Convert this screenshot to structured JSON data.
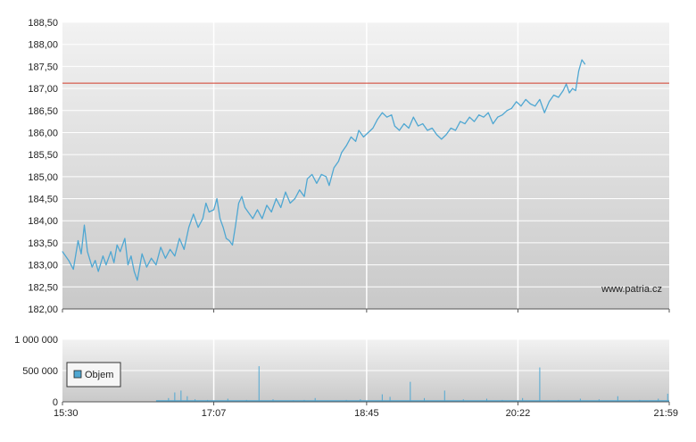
{
  "chart_data": [
    {
      "type": "line",
      "watermark": "www.patria.cz",
      "y_ticks": [
        "182,00",
        "182,50",
        "183,00",
        "183,50",
        "184,00",
        "184,50",
        "185,00",
        "185,50",
        "186,00",
        "186,50",
        "187,00",
        "187,50",
        "188,00",
        "188,50"
      ],
      "ylim": [
        182.0,
        188.5
      ],
      "reference_line": 187.12,
      "x_ticks": [
        "15:30",
        "17:07",
        "18:45",
        "20:22",
        "21:59"
      ],
      "series": [
        {
          "color": "#4fa7d2",
          "points": [
            [
              "15:30",
              183.3
            ],
            [
              "15:34",
              183.1
            ],
            [
              "15:37",
              182.9
            ],
            [
              "15:40",
              183.55
            ],
            [
              "15:42",
              183.25
            ],
            [
              "15:44",
              183.9
            ],
            [
              "15:46",
              183.3
            ],
            [
              "15:49",
              182.95
            ],
            [
              "15:51",
              183.1
            ],
            [
              "15:53",
              182.85
            ],
            [
              "15:56",
              183.2
            ],
            [
              "15:58",
              183.0
            ],
            [
              "16:01",
              183.3
            ],
            [
              "16:03",
              183.05
            ],
            [
              "16:05",
              183.45
            ],
            [
              "16:07",
              183.3
            ],
            [
              "16:10",
              183.6
            ],
            [
              "16:12",
              183.0
            ],
            [
              "16:14",
              183.2
            ],
            [
              "16:16",
              182.85
            ],
            [
              "16:18",
              182.65
            ],
            [
              "16:21",
              183.25
            ],
            [
              "16:24",
              182.95
            ],
            [
              "16:27",
              183.15
            ],
            [
              "16:30",
              183.0
            ],
            [
              "16:33",
              183.4
            ],
            [
              "16:36",
              183.15
            ],
            [
              "16:39",
              183.35
            ],
            [
              "16:42",
              183.2
            ],
            [
              "16:45",
              183.6
            ],
            [
              "16:48",
              183.35
            ],
            [
              "16:51",
              183.85
            ],
            [
              "16:54",
              184.15
            ],
            [
              "16:57",
              183.85
            ],
            [
              "17:00",
              184.05
            ],
            [
              "17:02",
              184.4
            ],
            [
              "17:04",
              184.2
            ],
            [
              "17:07",
              184.25
            ],
            [
              "17:09",
              184.5
            ],
            [
              "17:11",
              184.05
            ],
            [
              "17:13",
              183.85
            ],
            [
              "17:15",
              183.6
            ],
            [
              "17:17",
              183.55
            ],
            [
              "17:19",
              183.45
            ],
            [
              "17:21",
              183.9
            ],
            [
              "17:23",
              184.4
            ],
            [
              "17:25",
              184.55
            ],
            [
              "17:27",
              184.3
            ],
            [
              "17:29",
              184.2
            ],
            [
              "17:32",
              184.05
            ],
            [
              "17:35",
              184.25
            ],
            [
              "17:38",
              184.05
            ],
            [
              "17:41",
              184.35
            ],
            [
              "17:44",
              184.2
            ],
            [
              "17:47",
              184.5
            ],
            [
              "17:50",
              184.3
            ],
            [
              "17:53",
              184.65
            ],
            [
              "17:56",
              184.4
            ],
            [
              "17:59",
              184.5
            ],
            [
              "18:02",
              184.7
            ],
            [
              "18:05",
              184.55
            ],
            [
              "18:07",
              184.95
            ],
            [
              "18:10",
              185.05
            ],
            [
              "18:13",
              184.85
            ],
            [
              "18:16",
              185.05
            ],
            [
              "18:19",
              185.0
            ],
            [
              "18:21",
              184.8
            ],
            [
              "18:24",
              185.2
            ],
            [
              "18:27",
              185.35
            ],
            [
              "18:29",
              185.55
            ],
            [
              "18:32",
              185.7
            ],
            [
              "18:35",
              185.9
            ],
            [
              "18:38",
              185.8
            ],
            [
              "18:40",
              186.05
            ],
            [
              "18:43",
              185.9
            ],
            [
              "18:46",
              186.0
            ],
            [
              "18:49",
              186.1
            ],
            [
              "18:52",
              186.3
            ],
            [
              "18:55",
              186.45
            ],
            [
              "18:58",
              186.35
            ],
            [
              "19:01",
              186.4
            ],
            [
              "19:03",
              186.15
            ],
            [
              "19:06",
              186.05
            ],
            [
              "19:09",
              186.2
            ],
            [
              "19:12",
              186.1
            ],
            [
              "19:15",
              186.35
            ],
            [
              "19:18",
              186.15
            ],
            [
              "19:21",
              186.2
            ],
            [
              "19:24",
              186.05
            ],
            [
              "19:27",
              186.1
            ],
            [
              "19:30",
              185.95
            ],
            [
              "19:33",
              185.85
            ],
            [
              "19:36",
              185.95
            ],
            [
              "19:39",
              186.1
            ],
            [
              "19:42",
              186.05
            ],
            [
              "19:45",
              186.25
            ],
            [
              "19:48",
              186.2
            ],
            [
              "19:51",
              186.35
            ],
            [
              "19:54",
              186.25
            ],
            [
              "19:57",
              186.4
            ],
            [
              "20:00",
              186.35
            ],
            [
              "20:03",
              186.45
            ],
            [
              "20:06",
              186.2
            ],
            [
              "20:09",
              186.35
            ],
            [
              "20:12",
              186.4
            ],
            [
              "20:15",
              186.5
            ],
            [
              "20:18",
              186.55
            ],
            [
              "20:21",
              186.7
            ],
            [
              "20:24",
              186.6
            ],
            [
              "20:27",
              186.75
            ],
            [
              "20:30",
              186.65
            ],
            [
              "20:33",
              186.6
            ],
            [
              "20:36",
              186.75
            ],
            [
              "20:39",
              186.45
            ],
            [
              "20:42",
              186.7
            ],
            [
              "20:45",
              186.85
            ],
            [
              "20:48",
              186.8
            ],
            [
              "20:51",
              186.95
            ],
            [
              "20:53",
              187.1
            ],
            [
              "20:55",
              186.9
            ],
            [
              "20:57",
              187.0
            ],
            [
              "20:59",
              186.95
            ],
            [
              "21:01",
              187.4
            ],
            [
              "21:03",
              187.65
            ],
            [
              "21:05",
              187.55
            ]
          ]
        }
      ]
    },
    {
      "type": "bar",
      "y_ticks": [
        "0",
        "500 000",
        "1 000 000"
      ],
      "ylim": [
        0,
        1000000
      ],
      "x_ticks": [
        "15:30",
        "17:07",
        "18:45",
        "20:22",
        "21:59"
      ],
      "legend": {
        "label": "Objem",
        "position": "left"
      },
      "series": [
        {
          "name": "Objem",
          "color": "#4fa7d2",
          "points": [
            [
              "16:34",
              20000
            ],
            [
              "16:38",
              60000
            ],
            [
              "16:42",
              150000
            ],
            [
              "16:46",
              180000
            ],
            [
              "16:50",
              90000
            ],
            [
              "16:55",
              40000
            ],
            [
              "17:03",
              30000
            ],
            [
              "17:16",
              50000
            ],
            [
              "17:28",
              30000
            ],
            [
              "17:36",
              570000
            ],
            [
              "17:45",
              40000
            ],
            [
              "17:58",
              25000
            ],
            [
              "18:05",
              30000
            ],
            [
              "18:12",
              60000
            ],
            [
              "18:20",
              20000
            ],
            [
              "18:32",
              30000
            ],
            [
              "18:41",
              40000
            ],
            [
              "18:55",
              120000
            ],
            [
              "19:00",
              80000
            ],
            [
              "19:13",
              320000
            ],
            [
              "19:22",
              60000
            ],
            [
              "19:35",
              180000
            ],
            [
              "19:47",
              40000
            ],
            [
              "20:02",
              50000
            ],
            [
              "20:12",
              30000
            ],
            [
              "20:25",
              60000
            ],
            [
              "20:36",
              550000
            ],
            [
              "20:48",
              30000
            ],
            [
              "21:02",
              50000
            ],
            [
              "21:14",
              40000
            ],
            [
              "21:26",
              90000
            ],
            [
              "21:40",
              30000
            ],
            [
              "21:52",
              50000
            ],
            [
              "21:58",
              130000
            ]
          ]
        }
      ]
    }
  ]
}
